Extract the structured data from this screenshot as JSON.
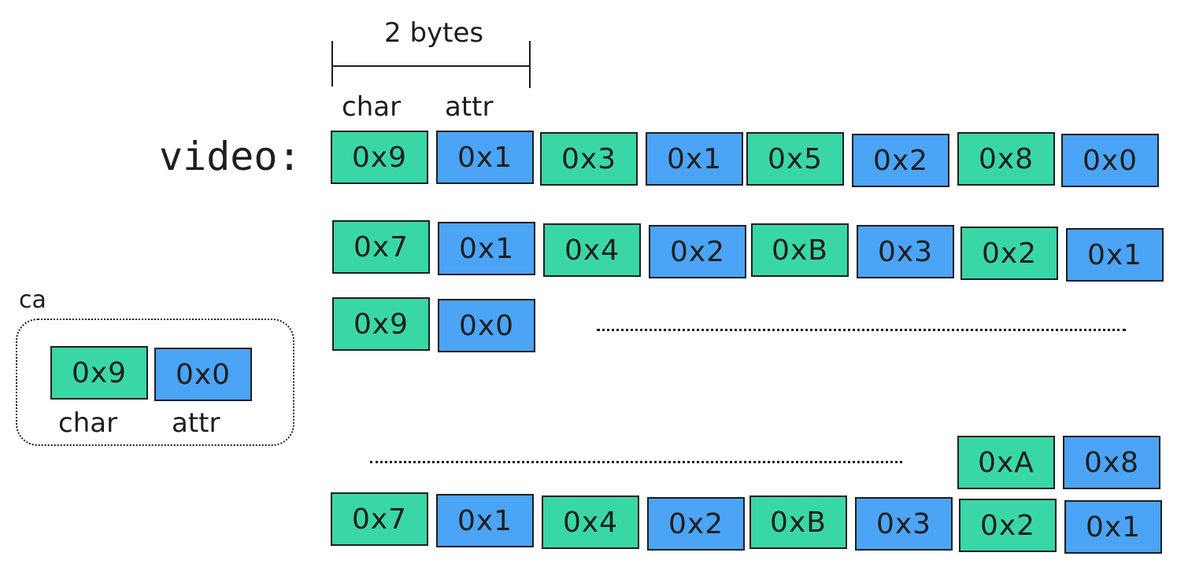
{
  "colors": {
    "char": "#3ad7a6",
    "attr": "#4ba4f5"
  },
  "width_label": "2 bytes",
  "column_labels": {
    "char": "char",
    "attr": "attr"
  },
  "video_label": "video:",
  "rows": [
    [
      "0x9",
      "0x1",
      "0x3",
      "0x1",
      "0x5",
      "0x2",
      "0x8",
      "0x0"
    ],
    [
      "0x7",
      "0x1",
      "0x4",
      "0x2",
      "0xB",
      "0x3",
      "0x2",
      "0x1"
    ],
    [
      "0x9",
      "0x0"
    ],
    [
      "0xA",
      "0x8"
    ],
    [
      "0x7",
      "0x1",
      "0x4",
      "0x2",
      "0xB",
      "0x3",
      "0x2",
      "0x1"
    ]
  ],
  "ca": {
    "label": "ca",
    "char_value": "0x9",
    "attr_value": "0x0",
    "char_label": "char",
    "attr_label": "attr"
  }
}
